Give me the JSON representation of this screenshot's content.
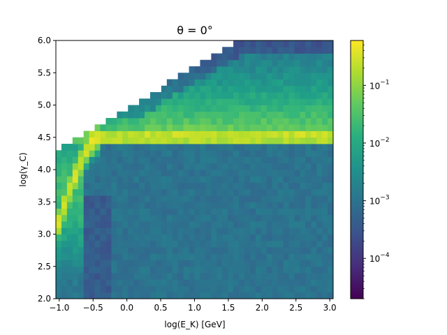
{
  "chart_data": {
    "type": "heatmap",
    "title": "θ = 0°",
    "xlabel": "log(E_K) [GeV]",
    "ylabel": "log(γ_C)",
    "xlim": [
      -1.05,
      3.05
    ],
    "ylim": [
      2.0,
      6.0
    ],
    "x_ticks": [
      "−1.0",
      "−0.5",
      "0.0",
      "0.5",
      "1.0",
      "1.5",
      "2.0",
      "2.5",
      "3.0"
    ],
    "x_tick_values": [
      -1.0,
      -0.5,
      0.0,
      0.5,
      1.0,
      1.5,
      2.0,
      2.5,
      3.0
    ],
    "y_ticks": [
      "2.0",
      "2.5",
      "3.0",
      "3.5",
      "4.0",
      "4.5",
      "5.0",
      "5.5",
      "6.0"
    ],
    "y_tick_values": [
      2.0,
      2.5,
      3.0,
      3.5,
      4.0,
      4.5,
      5.0,
      5.5,
      6.0
    ],
    "grid": false,
    "colorscale": "viridis",
    "colorbar": {
      "scale": "log",
      "range": [
        2e-05,
        0.6
      ],
      "tick_values": [
        0.0001,
        0.001,
        0.01,
        0.1
      ],
      "tick_labels": [
        "10",
        "10",
        "10",
        "10"
      ],
      "tick_exponents": [
        "−4",
        "−3",
        "−2",
        "−1"
      ]
    },
    "grid_cells": {
      "nx": 50,
      "ny": 40
    },
    "features": {
      "band_log_gamma": 4.5,
      "band_value": 0.5,
      "plateau_value": 0.001,
      "upper_edge": "log(γ_C) ≈ 4.35 + 0.6·(log(E_K)+1) at left, reaching 6.0 near log(E_K) ≈ 2.4"
    }
  }
}
